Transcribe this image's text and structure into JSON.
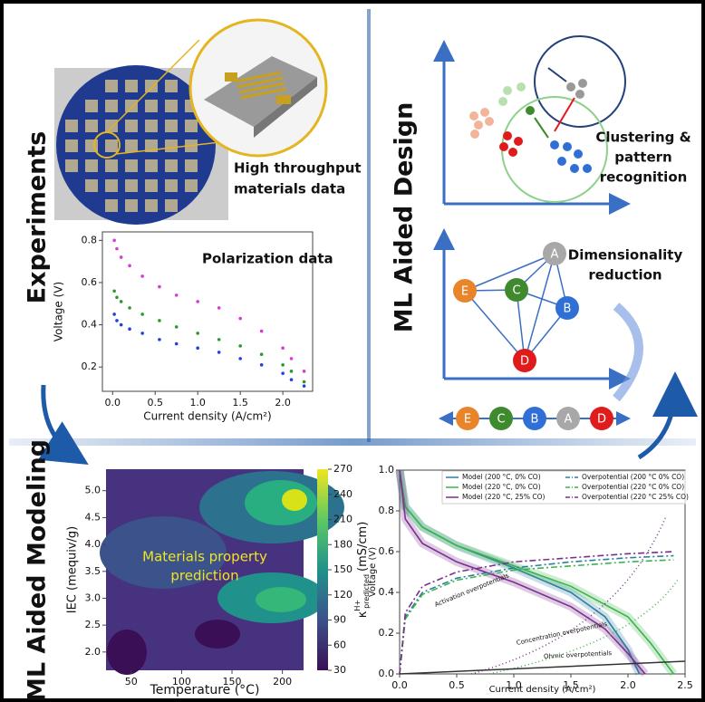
{
  "experiments": {
    "label": "Experiments",
    "photo_caption": [
      "High throughput",
      "materials data"
    ]
  },
  "polarization_chart": {
    "type": "scatter",
    "title": "Polarization data",
    "x_label": "Current density (A/cm²)",
    "y_label": "Voltage (V)",
    "xlim": [
      -0.12,
      2.35
    ],
    "ylim": [
      0.085,
      0.84
    ],
    "xticks": [
      {
        "value": 0,
        "label": "0.0"
      },
      {
        "value": 0.5,
        "label": "0.5"
      },
      {
        "value": 1,
        "label": "1.0"
      },
      {
        "value": 1.5,
        "label": "1.5"
      },
      {
        "value": 2,
        "label": "2.0"
      }
    ],
    "yticks": [
      0.2,
      0.4,
      0.6,
      0.8
    ],
    "x": [
      0.02,
      0.05,
      0.1,
      0.2,
      0.35,
      0.55,
      0.75,
      1.0,
      1.25,
      1.5,
      1.75,
      2.0,
      2.1,
      2.25
    ],
    "series": [
      {
        "color": "#d43cd4",
        "values": [
          0.8,
          0.76,
          0.72,
          0.68,
          0.63,
          0.58,
          0.54,
          0.51,
          0.48,
          0.43,
          0.37,
          0.29,
          0.24,
          0.18
        ]
      },
      {
        "color": "#2a9a2a",
        "values": [
          0.56,
          0.53,
          0.51,
          0.48,
          0.45,
          0.42,
          0.39,
          0.36,
          0.33,
          0.3,
          0.26,
          0.21,
          0.18,
          0.13
        ]
      },
      {
        "color": "#2040e0",
        "values": [
          0.45,
          0.42,
          0.4,
          0.38,
          0.36,
          0.33,
          0.31,
          0.29,
          0.27,
          0.24,
          0.21,
          0.17,
          0.14,
          0.11
        ]
      }
    ]
  },
  "design": {
    "label": "ML Aided Design",
    "clustering_caption": [
      "Clustering &",
      "pattern",
      "recognition"
    ],
    "reduction_caption": [
      "Dimensionality",
      "reduction"
    ],
    "nodes": [
      {
        "label": "A",
        "color": "#a8a8a8"
      },
      {
        "label": "B",
        "color": "#2f6fd6"
      },
      {
        "label": "C",
        "color": "#3f8a2e"
      },
      {
        "label": "D",
        "color": "#e01b1b"
      },
      {
        "label": "E",
        "color": "#e8842a"
      }
    ],
    "chain": [
      4,
      2,
      1,
      0,
      3
    ]
  },
  "modeling": {
    "label": "ML Aided Modeling",
    "contour": {
      "type": "contour",
      "annotation": [
        "Materials property",
        "prediction"
      ],
      "x_label": "Temperature (°C)",
      "y_label": "IEC (mequiv/g)",
      "colorbar_label": {
        "symbol": "κ",
        "superscript": "H+",
        "subscript": "predicted",
        "unit": "(mS/cm)"
      },
      "xlim": [
        25,
        221
      ],
      "ylim": [
        1.66,
        5.4
      ],
      "clim": [
        30,
        270
      ],
      "xticks": [
        50,
        100,
        150,
        200
      ],
      "yticks": [
        {
          "value": 2,
          "label": "2.0"
        },
        {
          "value": 2.5,
          "label": "2.5"
        },
        {
          "value": 3,
          "label": "3.0"
        },
        {
          "value": 3.5,
          "label": "3.5"
        },
        {
          "value": 4,
          "label": "4.0"
        },
        {
          "value": 4.5,
          "label": "4.5"
        },
        {
          "value": 5,
          "label": "5.0"
        }
      ],
      "cticks": [
        30,
        60,
        90,
        120,
        150,
        180,
        210,
        240,
        270
      ]
    },
    "model_chart": {
      "type": "line",
      "x_label": "Current density (A/cm²)",
      "y_label": "Voltage (V)",
      "xlim": [
        0,
        2.5
      ],
      "ylim": [
        0,
        1.0
      ],
      "xticks": [
        {
          "value": 0,
          "label": "0.0"
        },
        {
          "value": 0.5,
          "label": "0.5"
        },
        {
          "value": 1,
          "label": "1.0"
        },
        {
          "value": 1.5,
          "label": "1.5"
        },
        {
          "value": 2,
          "label": "2.0"
        },
        {
          "value": 2.5,
          "label": "2.5"
        }
      ],
      "yticks": [
        {
          "value": 0,
          "label": "0.0"
        },
        {
          "value": 0.2,
          "label": "0.2"
        },
        {
          "value": 0.4,
          "label": "0.4"
        },
        {
          "value": 0.6,
          "label": "0.6"
        },
        {
          "value": 0.8,
          "label": "0.8"
        },
        {
          "value": 1,
          "label": "1.0"
        }
      ],
      "annotations": [
        "Activation overpotentials",
        "Concentration overpotentials",
        "Ohmic overpotentials"
      ],
      "series": [
        {
          "name": "Model (200 °C, 0% CO)",
          "color": "#2a7fa0",
          "style": "solid",
          "x": [
            0,
            0.05,
            0.2,
            0.5,
            1.0,
            1.5,
            1.8,
            2.0,
            2.1
          ],
          "values": [
            1.0,
            0.82,
            0.72,
            0.63,
            0.52,
            0.4,
            0.28,
            0.12,
            0.0
          ]
        },
        {
          "name": "Model (220 °C, 0% CO)",
          "color": "#3cb44b",
          "style": "solid",
          "x": [
            0,
            0.05,
            0.2,
            0.5,
            1.0,
            1.5,
            2.0,
            2.2,
            2.4
          ],
          "values": [
            1.0,
            0.82,
            0.72,
            0.63,
            0.53,
            0.43,
            0.28,
            0.15,
            0.0
          ]
        },
        {
          "name": "Model (220 °C, 25% CO)",
          "color": "#7b2f8e",
          "style": "solid",
          "x": [
            0,
            0.05,
            0.2,
            0.5,
            1.0,
            1.5,
            1.8,
            2.0,
            2.15
          ],
          "values": [
            1.0,
            0.76,
            0.64,
            0.55,
            0.45,
            0.33,
            0.22,
            0.1,
            0.0
          ]
        },
        {
          "name": "Overpotential (200 °C 0% CO)",
          "color": "#2a7fa0",
          "style": "dashdot",
          "x": [
            0,
            0.05,
            0.2,
            0.5,
            1.0,
            1.5,
            2.0,
            2.4
          ],
          "values": [
            0,
            0.28,
            0.4,
            0.47,
            0.52,
            0.55,
            0.57,
            0.58
          ]
        },
        {
          "name": "Overpotential (220 °C 0% CO)",
          "color": "#3cb44b",
          "style": "dashdot",
          "x": [
            0,
            0.05,
            0.2,
            0.5,
            1.0,
            1.5,
            2.0,
            2.4
          ],
          "values": [
            0,
            0.27,
            0.39,
            0.46,
            0.51,
            0.53,
            0.55,
            0.56
          ]
        },
        {
          "name": "Overpotential (220 °C 25% CO)",
          "color": "#7b2f8e",
          "style": "dashdot",
          "x": [
            0,
            0.05,
            0.2,
            0.5,
            1.0,
            1.5,
            2.0,
            2.4
          ],
          "values": [
            0,
            0.3,
            0.43,
            0.5,
            0.55,
            0.57,
            0.59,
            0.6
          ]
        }
      ]
    }
  }
}
